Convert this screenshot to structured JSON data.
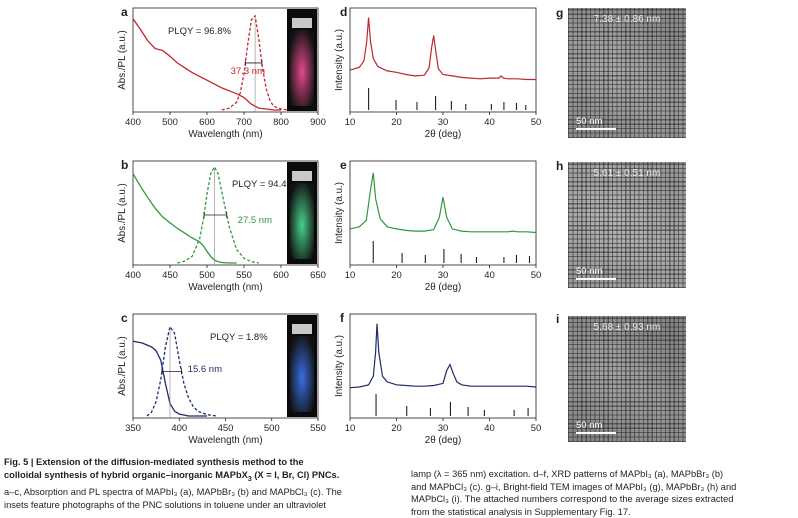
{
  "colors": {
    "red": "#c0262d",
    "green": "#2e9a3b",
    "navy": "#1f2b6b",
    "stick": "#231f20"
  },
  "panels": {
    "a": {
      "letter": "a",
      "plqy": "PLQY = 96.8%",
      "fwhm": "37.3 nm",
      "xlabel": "Wavelength (nm)",
      "ylabel": "Abs./PL (a.u.)",
      "ticks": [
        "400",
        "500",
        "600",
        "700",
        "800",
        "900"
      ]
    },
    "b": {
      "letter": "b",
      "plqy": "PLQY = 94.4%",
      "fwhm": "27.5 nm",
      "xlabel": "Wavelength (nm)",
      "ylabel": "Abs./PL (a.u.)",
      "ticks": [
        "400",
        "450",
        "500",
        "550",
        "600",
        "650"
      ]
    },
    "c": {
      "letter": "c",
      "plqy": "PLQY = 1.8%",
      "fwhm": "15.6 nm",
      "xlabel": "Wavelength (nm)",
      "ylabel": "Abs./PL (a.u.)",
      "ticks": [
        "350",
        "400",
        "450",
        "500",
        "550"
      ]
    },
    "d": {
      "letter": "d",
      "xlabel": "2θ (deg)",
      "ylabel": "Intensity (a.u.)",
      "ticks": [
        "10",
        "20",
        "30",
        "40",
        "50"
      ]
    },
    "e": {
      "letter": "e",
      "xlabel": "2θ (deg)",
      "ylabel": "Intensity (a.u.)",
      "ticks": [
        "10",
        "20",
        "30",
        "40",
        "50"
      ]
    },
    "f": {
      "letter": "f",
      "xlabel": "2θ (deg)",
      "ylabel": "Intensity (a.u.)",
      "ticks": [
        "10",
        "20",
        "30",
        "40",
        "50"
      ]
    },
    "g": {
      "letter": "g",
      "size": "7.38 ± 0.86 nm",
      "scale": "50 nm"
    },
    "h": {
      "letter": "h",
      "size": "5.61 ± 0.51 nm",
      "scale": "50 nm"
    },
    "i": {
      "letter": "i",
      "size": "5.68 ± 0.93 nm",
      "scale": "50 nm"
    }
  },
  "caption": {
    "left_bold_1": "Fig. 5 | Extension of the diffusion-mediated synthesis method to the",
    "left_bold_2": "colloidal synthesis of hybrid organic–inorganic MAPbX",
    "left_bold_3": "3",
    "left_bold_4": " (X = I, Br, Cl) PNCs.",
    "left_l3": "a–c, Absorption and PL spectra of MAPbI₃ (a), MAPbBr₃ (b) and MAPbCl₃ (c). The",
    "left_l4": "insets feature photographs of the PNC solutions in toluene under an ultraviolet",
    "right_l1": "lamp (λ = 365 nm) excitation. d–f, XRD patterns of MAPbI₃ (a), MAPbBr₃ (b)",
    "right_l2": "and MAPbCl₃ (c). g–i, Bright-field TEM images of MAPbI₃ (g), MAPbBr₃ (h) and",
    "right_l3": "MAPbCl₃ (i). The attached numbers correspond to the average sizes extracted",
    "right_l4": "from the statistical analysis in Supplementary Fig. 17."
  },
  "chart_data": [
    {
      "panel": "a",
      "type": "line",
      "title": "",
      "xlabel": "Wavelength (nm)",
      "ylabel": "Abs./PL (a.u.)",
      "xlim": [
        400,
        900
      ],
      "series": [
        {
          "name": "Absorption",
          "style": "solid",
          "x": [
            400,
            420,
            440,
            460,
            480,
            500,
            520,
            540,
            560,
            580,
            600,
            620,
            640,
            660,
            680,
            700,
            720,
            740,
            760,
            780,
            800
          ],
          "values": [
            0.95,
            0.84,
            0.72,
            0.64,
            0.62,
            0.56,
            0.49,
            0.44,
            0.39,
            0.35,
            0.31,
            0.27,
            0.23,
            0.2,
            0.17,
            0.13,
            0.06,
            0.02,
            0.01,
            0.0,
            0.0
          ]
        },
        {
          "name": "PL",
          "style": "dashed",
          "x": [
            640,
            660,
            680,
            690,
            700,
            710,
            720,
            730,
            740,
            750,
            760,
            770,
            780,
            800,
            820
          ],
          "values": [
            0.0,
            0.02,
            0.08,
            0.18,
            0.38,
            0.68,
            0.94,
            0.98,
            0.74,
            0.44,
            0.22,
            0.1,
            0.04,
            0.01,
            0.0
          ]
        }
      ],
      "annotations": [
        "PLQY = 96.8%",
        "37.3 nm"
      ]
    },
    {
      "panel": "b",
      "type": "line",
      "title": "",
      "xlabel": "Wavelength (nm)",
      "ylabel": "Abs./PL (a.u.)",
      "xlim": [
        400,
        650
      ],
      "series": [
        {
          "name": "Absorption",
          "style": "solid",
          "x": [
            400,
            410,
            420,
            430,
            440,
            450,
            460,
            470,
            480,
            490,
            495,
            500,
            505,
            510,
            515,
            520,
            530,
            540
          ],
          "values": [
            0.93,
            0.8,
            0.68,
            0.57,
            0.48,
            0.42,
            0.36,
            0.31,
            0.26,
            0.22,
            0.18,
            0.12,
            0.07,
            0.03,
            0.015,
            0.005,
            0.0,
            0.0
          ]
        },
        {
          "name": "PL",
          "style": "dashed",
          "x": [
            460,
            470,
            480,
            490,
            495,
            500,
            505,
            510,
            515,
            520,
            530,
            540,
            550,
            560,
            570
          ],
          "values": [
            0.0,
            0.02,
            0.07,
            0.25,
            0.45,
            0.72,
            0.93,
            1.0,
            0.93,
            0.74,
            0.38,
            0.14,
            0.05,
            0.015,
            0.0
          ]
        }
      ],
      "annotations": [
        "PLQY = 94.4%",
        "27.5 nm"
      ]
    },
    {
      "panel": "c",
      "type": "line",
      "title": "",
      "xlabel": "Wavelength (nm)",
      "ylabel": "Abs./PL (a.u.)",
      "xlim": [
        350,
        550
      ],
      "series": [
        {
          "name": "Absorption",
          "style": "solid",
          "x": [
            350,
            355,
            360,
            365,
            370,
            375,
            380,
            385,
            390,
            395,
            400,
            405,
            410,
            420,
            430
          ],
          "values": [
            0.78,
            0.77,
            0.76,
            0.74,
            0.72,
            0.68,
            0.58,
            0.34,
            0.13,
            0.05,
            0.02,
            0.01,
            0.0,
            0.0,
            0.0
          ]
        },
        {
          "name": "PL",
          "style": "dashed",
          "x": [
            365,
            370,
            375,
            380,
            385,
            390,
            395,
            400,
            405,
            410,
            415,
            420,
            430,
            440
          ],
          "values": [
            0.0,
            0.04,
            0.15,
            0.38,
            0.72,
            0.93,
            0.86,
            0.58,
            0.34,
            0.19,
            0.1,
            0.05,
            0.015,
            0.0
          ]
        }
      ],
      "annotations": [
        "PLQY = 1.8%",
        "15.6 nm"
      ]
    },
    {
      "panel": "d",
      "type": "line",
      "title": "",
      "xlabel": "2θ (deg)",
      "ylabel": "Intensity (a.u.)",
      "xlim": [
        10,
        50
      ],
      "series": [
        {
          "name": "MAPbI3",
          "x": [
            10,
            12,
            13,
            13.6,
            14,
            14.4,
            15,
            16,
            18,
            20,
            22,
            24,
            26,
            27,
            27.6,
            28,
            28.4,
            29,
            30,
            32,
            34,
            36,
            38,
            40,
            42,
            42.5,
            43,
            44,
            46,
            48,
            50
          ],
          "values": [
            0.22,
            0.26,
            0.35,
            0.62,
            0.95,
            0.62,
            0.38,
            0.27,
            0.21,
            0.19,
            0.16,
            0.14,
            0.15,
            0.25,
            0.55,
            0.7,
            0.5,
            0.24,
            0.16,
            0.14,
            0.12,
            0.11,
            0.1,
            0.11,
            0.11,
            0.14,
            0.11,
            0.1,
            0.1,
            0.09,
            0.09
          ]
        }
      ],
      "reference_peaks": [
        14.0,
        19.9,
        24.4,
        28.4,
        31.8,
        34.9,
        40.4,
        43.1,
        45.8,
        47.8
      ]
    },
    {
      "panel": "e",
      "type": "line",
      "title": "",
      "xlabel": "2θ (deg)",
      "ylabel": "Intensity (a.u.)",
      "xlim": [
        10,
        50
      ],
      "series": [
        {
          "name": "MAPbBr3",
          "x": [
            10,
            12,
            13.5,
            14.5,
            15,
            15.5,
            16.5,
            18,
            20,
            22,
            24,
            26,
            28,
            29.2,
            30,
            30.8,
            32,
            34,
            36,
            38,
            40,
            42,
            44,
            45,
            46,
            48,
            50
          ],
          "values": [
            0.14,
            0.17,
            0.26,
            0.72,
            0.92,
            0.56,
            0.28,
            0.17,
            0.14,
            0.12,
            0.11,
            0.11,
            0.13,
            0.3,
            0.58,
            0.3,
            0.14,
            0.11,
            0.1,
            0.1,
            0.1,
            0.1,
            0.1,
            0.11,
            0.1,
            0.1,
            0.09
          ]
        }
      ],
      "reference_peaks": [
        15.0,
        21.2,
        26.2,
        30.2,
        33.9,
        37.2,
        43.1,
        45.8,
        48.6
      ]
    },
    {
      "panel": "f",
      "type": "line",
      "title": "",
      "xlabel": "2θ (deg)",
      "ylabel": "Intensity (a.u.)",
      "xlim": [
        10,
        50
      ],
      "series": [
        {
          "name": "MAPbCl3",
          "x": [
            10,
            12,
            14,
            15,
            15.5,
            15.8,
            16.2,
            17,
            18,
            20,
            22,
            24,
            26,
            28,
            30,
            30.8,
            31.5,
            32.3,
            33,
            34,
            36,
            38,
            40,
            42,
            44,
            46,
            48,
            50
          ],
          "values": [
            0.06,
            0.07,
            0.1,
            0.22,
            0.55,
            0.95,
            0.55,
            0.22,
            0.14,
            0.1,
            0.09,
            0.08,
            0.08,
            0.09,
            0.12,
            0.3,
            0.38,
            0.24,
            0.14,
            0.1,
            0.08,
            0.08,
            0.08,
            0.08,
            0.08,
            0.08,
            0.08,
            0.07
          ]
        }
      ],
      "reference_peaks": [
        15.6,
        22.2,
        27.3,
        31.6,
        35.4,
        38.9,
        45.3,
        48.3
      ]
    }
  ]
}
